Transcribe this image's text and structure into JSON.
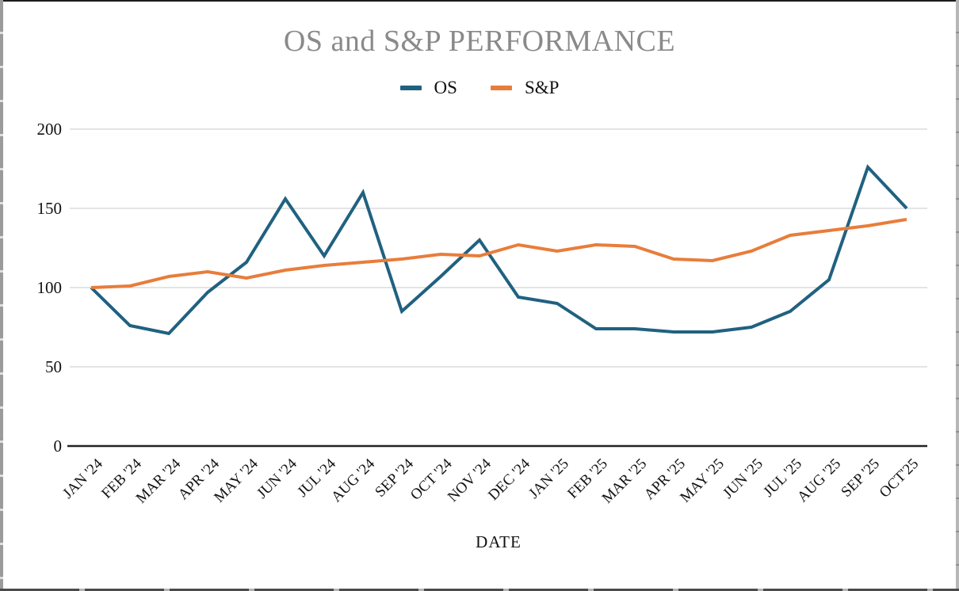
{
  "colors": {
    "title_text": "#8A8A8A",
    "gridline": "#C9C9C9",
    "axis_line": "#222222",
    "label_text": "#111111",
    "os_series": "#206180",
    "sp_series": "#E87D3B",
    "background": "#FFFFFF"
  },
  "chart_data": {
    "type": "line",
    "title": "OS and S&P PERFORMANCE",
    "xlabel": "DATE",
    "ylabel": "",
    "ylim": [
      0,
      200
    ],
    "y_ticks": [
      0,
      50,
      100,
      150,
      200
    ],
    "grid": true,
    "legend_position": "top-center",
    "categories": [
      "JAN '24",
      "FEB '24",
      "MAR '24",
      "APR '24",
      "MAY '24",
      "JUN '24",
      "JUL '24",
      "AUG '24",
      "SEP '24",
      "OCT '24",
      "NOV '24",
      "DEC '24",
      "JAN '25",
      "FEB '25",
      "MAR '25",
      "APR '25",
      "MAY '25",
      "JUN '25",
      "JUL '25",
      "AUG '25",
      "SEP '25",
      "OCT'25"
    ],
    "series": [
      {
        "name": "OS",
        "color": "#206180",
        "values": [
          100,
          76,
          71,
          97,
          116,
          156,
          120,
          160,
          85,
          107,
          130,
          94,
          90,
          74,
          74,
          72,
          72,
          75,
          85,
          105,
          176,
          150
        ]
      },
      {
        "name": "S&P",
        "color": "#E87D3B",
        "values": [
          100,
          101,
          107,
          110,
          106,
          111,
          114,
          116,
          118,
          121,
          120,
          127,
          123,
          127,
          126,
          118,
          117,
          123,
          133,
          136,
          139,
          143
        ]
      }
    ]
  }
}
